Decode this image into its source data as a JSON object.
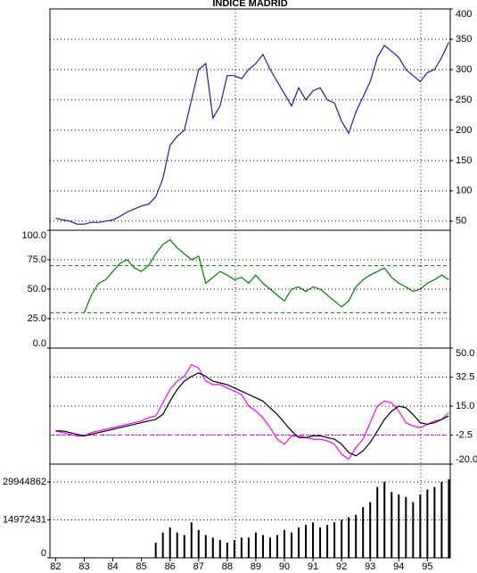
{
  "chart_data": [
    {
      "type": "line",
      "title": "INDICE MADRID",
      "yaxis_side": "right",
      "xlim": [
        81.8,
        95.8
      ],
      "ylim": [
        35,
        400
      ],
      "yticks": [
        50,
        100,
        150,
        200,
        250,
        300,
        350,
        400
      ],
      "grid": true,
      "x": [
        82,
        82.25,
        82.5,
        82.75,
        83,
        83.25,
        83.5,
        83.75,
        84,
        84.25,
        84.5,
        84.75,
        85,
        85.25,
        85.5,
        85.75,
        86,
        86.25,
        86.5,
        86.75,
        87,
        87.25,
        87.5,
        87.75,
        88,
        88.25,
        88.5,
        88.75,
        89,
        89.25,
        89.5,
        89.75,
        90,
        90.25,
        90.5,
        90.75,
        91,
        91.25,
        91.5,
        91.75,
        92,
        92.25,
        92.5,
        92.75,
        93,
        93.25,
        93.5,
        93.75,
        94,
        94.25,
        94.5,
        94.75,
        95,
        95.25,
        95.5,
        95.75
      ],
      "series": [
        {
          "color": "#1c1ca8",
          "values": [
            55,
            52,
            50,
            45,
            45,
            48,
            48,
            50,
            52,
            58,
            65,
            70,
            75,
            78,
            90,
            120,
            175,
            190,
            200,
            250,
            300,
            310,
            220,
            240,
            290,
            290,
            285,
            300,
            310,
            325,
            300,
            280,
            260,
            240,
            270,
            250,
            265,
            270,
            250,
            245,
            215,
            195,
            230,
            255,
            280,
            320,
            340,
            330,
            320,
            300,
            290,
            280,
            295,
            300,
            320,
            345
          ]
        }
      ]
    },
    {
      "type": "line",
      "yaxis_side": "left",
      "xlim": [
        81.8,
        95.8
      ],
      "ylim": [
        0,
        100
      ],
      "yticks": [
        {
          "value": 0,
          "label": "0.0"
        },
        {
          "value": 25,
          "label": "25.0"
        },
        {
          "value": 50,
          "label": "50.0"
        },
        {
          "value": 75,
          "label": "75.0"
        },
        {
          "value": 100,
          "label": "100.0"
        }
      ],
      "grid": true,
      "hlines": [
        30,
        70
      ],
      "hline_color": "#008000",
      "x": [
        82,
        82.25,
        82.5,
        82.75,
        83,
        83.25,
        83.5,
        83.75,
        84,
        84.25,
        84.5,
        84.75,
        85,
        85.25,
        85.5,
        85.75,
        86,
        86.25,
        86.5,
        86.75,
        87,
        87.25,
        87.5,
        87.75,
        88,
        88.25,
        88.5,
        88.75,
        89,
        89.25,
        89.5,
        89.75,
        90,
        90.25,
        90.5,
        90.75,
        91,
        91.25,
        91.5,
        91.75,
        92,
        92.25,
        92.5,
        92.75,
        93,
        93.25,
        93.5,
        93.75,
        94,
        94.25,
        94.5,
        94.75,
        95,
        95.25,
        95.5,
        95.75
      ],
      "series": [
        {
          "color": "#008000",
          "values": [
            null,
            null,
            null,
            null,
            30,
            45,
            55,
            58,
            65,
            72,
            75,
            68,
            65,
            70,
            80,
            88,
            92,
            85,
            80,
            75,
            78,
            55,
            60,
            65,
            62,
            58,
            60,
            55,
            62,
            55,
            50,
            45,
            40,
            50,
            52,
            48,
            52,
            50,
            45,
            40,
            35,
            40,
            52,
            58,
            62,
            65,
            68,
            60,
            55,
            52,
            48,
            50,
            55,
            58,
            62,
            58
          ]
        }
      ]
    },
    {
      "type": "line",
      "yaxis_side": "right",
      "xlim": [
        81.8,
        95.8
      ],
      "ylim": [
        -20,
        50
      ],
      "yticks": [
        {
          "value": -20,
          "label": "-20.0"
        },
        -2.5,
        {
          "value": 15,
          "label": "15.0"
        },
        32.5,
        {
          "value": 50,
          "label": "50.0"
        }
      ],
      "grid": true,
      "hlines": [
        -2.5
      ],
      "hline_color": "#ff00ff",
      "x": [
        82,
        82.25,
        82.5,
        82.75,
        83,
        83.25,
        83.5,
        83.75,
        84,
        84.25,
        84.5,
        84.75,
        85,
        85.25,
        85.5,
        85.75,
        86,
        86.25,
        86.5,
        86.75,
        87,
        87.25,
        87.5,
        87.75,
        88,
        88.25,
        88.5,
        88.75,
        89,
        89.25,
        89.5,
        89.75,
        90,
        90.25,
        90.5,
        90.75,
        91,
        91.25,
        91.5,
        91.75,
        92,
        92.25,
        92.5,
        92.75,
        93,
        93.25,
        93.5,
        93.75,
        94,
        94.25,
        94.5,
        94.75,
        95,
        95.25,
        95.5,
        95.75
      ],
      "series": [
        {
          "color": "#ff00ff",
          "values": [
            0,
            -1,
            -2,
            -3,
            -3,
            -1,
            0,
            1,
            2,
            3,
            4,
            5,
            6,
            8,
            9,
            17,
            25,
            30,
            33,
            40,
            38,
            30,
            28,
            28,
            26,
            24,
            22,
            15,
            12,
            8,
            2,
            -5,
            -8,
            -3,
            -3,
            -4,
            -5,
            -5,
            -6,
            -8,
            -14,
            -17,
            -10,
            -5,
            5,
            15,
            18,
            17,
            12,
            5,
            3,
            2,
            4,
            6,
            7,
            11
          ]
        },
        {
          "color": "#000000",
          "values": [
            0,
            0,
            -1,
            -2,
            -3,
            -2,
            -1,
            0,
            1,
            2,
            3,
            4,
            5,
            6,
            7,
            10,
            18,
            25,
            30,
            33,
            35,
            33,
            30,
            29,
            28,
            26,
            24,
            22,
            20,
            18,
            14,
            10,
            5,
            0,
            -4,
            -4,
            -3,
            -3,
            -4,
            -5,
            -8,
            -13,
            -15,
            -12,
            -7,
            0,
            7,
            12,
            15,
            14,
            10,
            5,
            4,
            5,
            7,
            9
          ]
        }
      ]
    },
    {
      "type": "bar",
      "yaxis_side": "left",
      "xlim": [
        81.8,
        95.8
      ],
      "ylim": [
        0,
        37000000
      ],
      "yticks": [
        0,
        14972431,
        29944862
      ],
      "grid": true,
      "xticks": [
        82,
        83,
        84,
        85,
        86,
        87,
        88,
        89,
        90,
        91,
        92,
        93,
        94,
        95
      ],
      "x": [
        82,
        82.25,
        82.5,
        82.75,
        83,
        83.25,
        83.5,
        83.75,
        84,
        84.25,
        84.5,
        84.75,
        85,
        85.25,
        85.5,
        85.75,
        86,
        86.25,
        86.5,
        86.75,
        87,
        87.25,
        87.5,
        87.75,
        88,
        88.25,
        88.5,
        88.75,
        89,
        89.25,
        89.5,
        89.75,
        90,
        90.25,
        90.5,
        90.75,
        91,
        91.25,
        91.5,
        91.75,
        92,
        92.25,
        92.5,
        92.75,
        93,
        93.25,
        93.5,
        93.75,
        94,
        94.25,
        94.5,
        94.75,
        95,
        95.25,
        95.5,
        95.75
      ],
      "series": [
        {
          "color": "#000000",
          "values": [
            null,
            null,
            null,
            null,
            null,
            null,
            null,
            null,
            null,
            null,
            null,
            null,
            null,
            null,
            6000000,
            10000000,
            12000000,
            10000000,
            9000000,
            14000000,
            11000000,
            9000000,
            8000000,
            7000000,
            6000000,
            7000000,
            8000000,
            8000000,
            10000000,
            9000000,
            8000000,
            9000000,
            11000000,
            10000000,
            12000000,
            13000000,
            14000000,
            12000000,
            13000000,
            14000000,
            15000000,
            16000000,
            17000000,
            20000000,
            22000000,
            28000000,
            30000000,
            26000000,
            25000000,
            24000000,
            22000000,
            25000000,
            27000000,
            28000000,
            30000000,
            31000000
          ]
        }
      ]
    }
  ]
}
